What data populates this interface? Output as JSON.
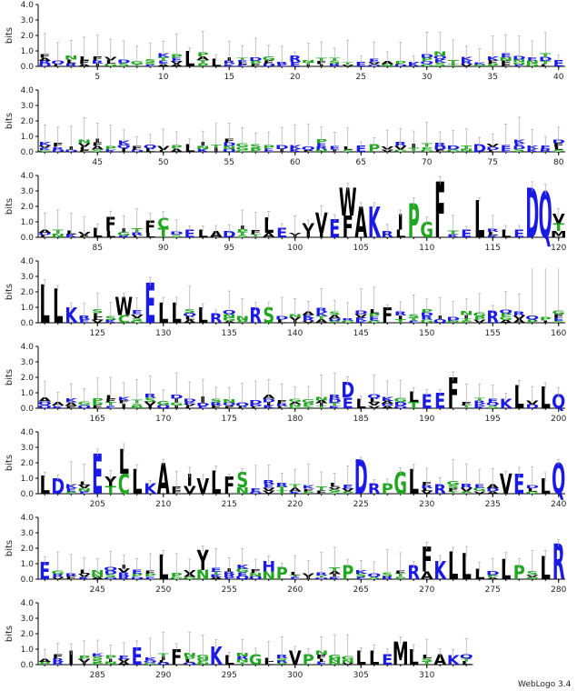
{
  "chart_data": {
    "type": "sequence-logo",
    "ylabel": "bits",
    "ylim": [
      0,
      4
    ],
    "y_ticks": [
      "0.0",
      "1.0",
      "2.0",
      "3.0",
      "4.0"
    ],
    "rows": [
      {
        "start": 1,
        "end": 40,
        "x_ticks": [
          5,
          10,
          15,
          20,
          25,
          30,
          35,
          40
        ]
      },
      {
        "start": 41,
        "end": 80,
        "x_ticks": [
          45,
          50,
          55,
          60,
          65,
          70,
          75,
          80
        ]
      },
      {
        "start": 81,
        "end": 120,
        "x_ticks": [
          85,
          90,
          95,
          100,
          105,
          110,
          115,
          120
        ]
      },
      {
        "start": 121,
        "end": 160,
        "x_ticks": [
          125,
          130,
          135,
          140,
          145,
          150,
          155,
          160
        ]
      },
      {
        "start": 161,
        "end": 200,
        "x_ticks": [
          165,
          170,
          175,
          180,
          185,
          190,
          195,
          200
        ]
      },
      {
        "start": 201,
        "end": 240,
        "x_ticks": [
          205,
          210,
          215,
          220,
          225,
          230,
          235,
          240
        ]
      },
      {
        "start": 241,
        "end": 280,
        "x_ticks": [
          245,
          250,
          255,
          260,
          265,
          270,
          275,
          280
        ]
      },
      {
        "start": 281,
        "end": 313,
        "x_ticks": [
          285,
          290,
          295,
          300,
          305,
          310
        ]
      }
    ],
    "colors": {
      "hydrophobic": "#000000",
      "polar": "#1fa81f",
      "charged": "#1a1ae6",
      "error": "#aaaaaa"
    },
    "residue_colors": {
      "A": "#000000",
      "V": "#000000",
      "L": "#000000",
      "I": "#000000",
      "P": "#1fa81f",
      "F": "#000000",
      "W": "#000000",
      "M": "#000000",
      "G": "#1fa81f",
      "S": "#1fa81f",
      "T": "#1fa81f",
      "C": "#1fa81f",
      "Y": "#000000",
      "N": "#1fa81f",
      "Q": "#1a1ae6",
      "D": "#1a1ae6",
      "E": "#1a1ae6",
      "K": "#1a1ae6",
      "R": "#1a1ae6",
      "H": "#1a1ae6"
    },
    "positions": [
      {
        "pos": 12,
        "stack": [
          [
            "L",
            1.0
          ]
        ]
      },
      {
        "pos": 14,
        "stack": [
          [
            "L",
            0.5
          ]
        ]
      },
      {
        "pos": 20,
        "stack": [
          [
            "R",
            0.4
          ],
          [
            "E",
            0.3
          ]
        ]
      },
      {
        "pos": 25,
        "stack": [
          [
            "E",
            0.3
          ]
        ]
      },
      {
        "pos": 29,
        "stack": [
          [
            "K",
            0.3
          ]
        ]
      },
      {
        "pos": 40,
        "stack": [
          [
            "E",
            0.4
          ]
        ]
      },
      {
        "pos": 52,
        "stack": [
          [
            "L",
            0.5
          ]
        ]
      },
      {
        "pos": 65,
        "stack": [
          [
            "E",
            0.4
          ]
        ]
      },
      {
        "pos": 66,
        "stack": [
          [
            "P",
            0.5
          ]
        ]
      },
      {
        "pos": 74,
        "stack": [
          [
            "D",
            0.5
          ]
        ]
      },
      {
        "pos": 85,
        "stack": [
          [
            "L",
            0.6
          ]
        ]
      },
      {
        "pos": 86,
        "stack": [
          [
            "F",
            0.9
          ],
          [
            "L",
            0.4
          ]
        ]
      },
      {
        "pos": 89,
        "stack": [
          [
            "F",
            0.8
          ],
          [
            "L",
            0.3
          ]
        ]
      },
      {
        "pos": 90,
        "stack": [
          [
            "C",
            0.7
          ],
          [
            "T",
            0.6
          ]
        ]
      },
      {
        "pos": 92,
        "stack": [
          [
            "E",
            0.5
          ]
        ]
      },
      {
        "pos": 93,
        "stack": [
          [
            "L",
            0.5
          ]
        ]
      },
      {
        "pos": 94,
        "stack": [
          [
            "A",
            0.4
          ]
        ]
      },
      {
        "pos": 95,
        "stack": [
          [
            "D",
            0.4
          ]
        ]
      },
      {
        "pos": 98,
        "stack": [
          [
            "L",
            1.0
          ],
          [
            "A",
            0.3
          ]
        ]
      },
      {
        "pos": 99,
        "stack": [
          [
            "E",
            0.6
          ]
        ]
      },
      {
        "pos": 101,
        "stack": [
          [
            "V",
            0.5
          ],
          [
            "I",
            0.4
          ]
        ]
      },
      {
        "pos": 102,
        "stack": [
          [
            "V",
            1.3
          ],
          [
            "I",
            0.3
          ]
        ]
      },
      {
        "pos": 103,
        "stack": [
          [
            "E",
            1.2
          ]
        ]
      },
      {
        "pos": 104,
        "stack": [
          [
            "W",
            1.8
          ],
          [
            "F",
            1.4
          ]
        ]
      },
      {
        "pos": 105,
        "stack": [
          [
            "A",
            2.0
          ]
        ]
      },
      {
        "pos": 106,
        "stack": [
          [
            "K",
            2.0
          ]
        ]
      },
      {
        "pos": 107,
        "stack": [
          [
            "R",
            0.4
          ]
        ]
      },
      {
        "pos": 108,
        "stack": [
          [
            "I",
            1.0
          ],
          [
            "L",
            0.5
          ]
        ]
      },
      {
        "pos": 109,
        "stack": [
          [
            "P",
            2.2
          ]
        ]
      },
      {
        "pos": 110,
        "stack": [
          [
            "G",
            1.0
          ]
        ]
      },
      {
        "pos": 111,
        "stack": [
          [
            "F",
            3.6
          ]
        ]
      },
      {
        "pos": 113,
        "stack": [
          [
            "E",
            0.5
          ]
        ]
      },
      {
        "pos": 114,
        "stack": [
          [
            "L",
            2.4
          ]
        ]
      },
      {
        "pos": 116,
        "stack": [
          [
            "L",
            0.5
          ]
        ]
      },
      {
        "pos": 117,
        "stack": [
          [
            "E",
            0.5
          ]
        ]
      },
      {
        "pos": 118,
        "stack": [
          [
            "D",
            3.2
          ]
        ]
      },
      {
        "pos": 119,
        "stack": [
          [
            "Q",
            3.0
          ]
        ]
      },
      {
        "pos": 120,
        "stack": [
          [
            "V",
            0.6
          ],
          [
            "T",
            0.5
          ],
          [
            "M",
            0.4
          ]
        ]
      },
      {
        "pos": 121,
        "stack": [
          [
            "L",
            2.5
          ]
        ]
      },
      {
        "pos": 122,
        "stack": [
          [
            "L",
            2.2
          ]
        ]
      },
      {
        "pos": 123,
        "stack": [
          [
            "K",
            1.0
          ]
        ]
      },
      {
        "pos": 127,
        "stack": [
          [
            "W",
            1.2
          ],
          [
            "C",
            0.5
          ]
        ]
      },
      {
        "pos": 129,
        "stack": [
          [
            "E",
            2.6
          ]
        ]
      },
      {
        "pos": 130,
        "stack": [
          [
            "L",
            1.3
          ]
        ]
      },
      {
        "pos": 131,
        "stack": [
          [
            "L",
            1.3
          ]
        ]
      },
      {
        "pos": 133,
        "stack": [
          [
            "L",
            1.0
          ]
        ]
      },
      {
        "pos": 134,
        "stack": [
          [
            "R",
            0.6
          ]
        ]
      },
      {
        "pos": 137,
        "stack": [
          [
            "R",
            1.0
          ]
        ]
      },
      {
        "pos": 138,
        "stack": [
          [
            "S",
            1.0
          ]
        ]
      },
      {
        "pos": 147,
        "stack": [
          [
            "F",
            1.0
          ]
        ]
      },
      {
        "pos": 155,
        "stack": [
          [
            "R",
            0.8
          ]
        ]
      },
      {
        "pos": 184,
        "stack": [
          [
            "D",
            1.0
          ],
          [
            "E",
            0.7
          ]
        ]
      },
      {
        "pos": 185,
        "stack": [
          [
            "L",
            0.6
          ]
        ]
      },
      {
        "pos": 189,
        "stack": [
          [
            "L",
            0.7
          ],
          [
            "T",
            0.4
          ]
        ]
      },
      {
        "pos": 190,
        "stack": [
          [
            "E",
            0.9
          ]
        ]
      },
      {
        "pos": 191,
        "stack": [
          [
            "E",
            1.0
          ]
        ]
      },
      {
        "pos": 192,
        "stack": [
          [
            "F",
            2.0
          ]
        ]
      },
      {
        "pos": 196,
        "stack": [
          [
            "K",
            0.6
          ]
        ]
      },
      {
        "pos": 197,
        "stack": [
          [
            "L",
            1.5
          ]
        ]
      },
      {
        "pos": 199,
        "stack": [
          [
            "L",
            1.4
          ]
        ]
      },
      {
        "pos": 200,
        "stack": [
          [
            "Q",
            0.9
          ]
        ]
      },
      {
        "pos": 201,
        "stack": [
          [
            "L",
            1.2
          ]
        ]
      },
      {
        "pos": 202,
        "stack": [
          [
            "D",
            1.0
          ]
        ]
      },
      {
        "pos": 205,
        "stack": [
          [
            "E",
            2.6
          ]
        ]
      },
      {
        "pos": 206,
        "stack": [
          [
            "Y",
            0.6
          ],
          [
            "T",
            0.5
          ]
        ]
      },
      {
        "pos": 207,
        "stack": [
          [
            "L",
            1.6
          ],
          [
            "C",
            1.3
          ]
        ]
      },
      {
        "pos": 208,
        "stack": [
          [
            "L",
            1.6
          ]
        ]
      },
      {
        "pos": 209,
        "stack": [
          [
            "K",
            0.7
          ]
        ]
      },
      {
        "pos": 210,
        "stack": [
          [
            "A",
            2.0
          ]
        ]
      },
      {
        "pos": 212,
        "stack": [
          [
            "I",
            0.8
          ],
          [
            "V",
            0.5
          ]
        ]
      },
      {
        "pos": 213,
        "stack": [
          [
            "V",
            1.0
          ]
        ]
      },
      {
        "pos": 214,
        "stack": [
          [
            "L",
            1.5
          ]
        ]
      },
      {
        "pos": 215,
        "stack": [
          [
            "F",
            1.1
          ]
        ]
      },
      {
        "pos": 216,
        "stack": [
          [
            "S",
            1.0
          ],
          [
            "N",
            0.4
          ]
        ]
      },
      {
        "pos": 225,
        "stack": [
          [
            "D",
            2.2
          ]
        ]
      },
      {
        "pos": 226,
        "stack": [
          [
            "R",
            0.7
          ]
        ]
      },
      {
        "pos": 227,
        "stack": [
          [
            "P",
            0.7
          ]
        ]
      },
      {
        "pos": 228,
        "stack": [
          [
            "G",
            1.4
          ]
        ]
      },
      {
        "pos": 229,
        "stack": [
          [
            "L",
            1.6
          ]
        ]
      },
      {
        "pos": 231,
        "stack": [
          [
            "R",
            0.6
          ]
        ]
      },
      {
        "pos": 236,
        "stack": [
          [
            "V",
            1.3
          ]
        ]
      },
      {
        "pos": 237,
        "stack": [
          [
            "E",
            1.3
          ]
        ]
      },
      {
        "pos": 239,
        "stack": [
          [
            "L",
            1.0
          ]
        ]
      },
      {
        "pos": 240,
        "stack": [
          [
            "Q",
            2.0
          ]
        ]
      },
      {
        "pos": 241,
        "stack": [
          [
            "E",
            1.1
          ]
        ]
      },
      {
        "pos": 250,
        "stack": [
          [
            "L",
            1.6
          ]
        ]
      },
      {
        "pos": 253,
        "stack": [
          [
            "Y",
            1.3
          ],
          [
            "N",
            0.6
          ]
        ]
      },
      {
        "pos": 258,
        "stack": [
          [
            "H",
            0.7
          ],
          [
            "N",
            0.5
          ]
        ]
      },
      {
        "pos": 259,
        "stack": [
          [
            "P",
            0.8
          ]
        ]
      },
      {
        "pos": 264,
        "stack": [
          [
            "P",
            0.9
          ]
        ]
      },
      {
        "pos": 269,
        "stack": [
          [
            "R",
            0.9
          ]
        ]
      },
      {
        "pos": 270,
        "stack": [
          [
            "F",
            1.6
          ],
          [
            "A",
            0.5
          ]
        ]
      },
      {
        "pos": 271,
        "stack": [
          [
            "K",
            1.2
          ]
        ]
      },
      {
        "pos": 272,
        "stack": [
          [
            "L",
            1.8
          ]
        ]
      },
      {
        "pos": 273,
        "stack": [
          [
            "L",
            1.7
          ]
        ]
      },
      {
        "pos": 274,
        "stack": [
          [
            "L",
            0.7
          ]
        ]
      },
      {
        "pos": 276,
        "stack": [
          [
            "L",
            1.3
          ]
        ]
      },
      {
        "pos": 277,
        "stack": [
          [
            "P",
            0.9
          ]
        ]
      },
      {
        "pos": 279,
        "stack": [
          [
            "L",
            1.5
          ]
        ]
      },
      {
        "pos": 280,
        "stack": [
          [
            "R",
            2.3
          ]
        ]
      },
      {
        "pos": 283,
        "stack": [
          [
            "I",
            0.9
          ]
        ]
      },
      {
        "pos": 288,
        "stack": [
          [
            "E",
            1.1
          ]
        ]
      },
      {
        "pos": 291,
        "stack": [
          [
            "F",
            1.0
          ]
        ]
      },
      {
        "pos": 294,
        "stack": [
          [
            "K",
            1.2
          ]
        ]
      },
      {
        "pos": 295,
        "stack": [
          [
            "L",
            0.6
          ]
        ]
      },
      {
        "pos": 297,
        "stack": [
          [
            "G",
            0.7
          ]
        ]
      },
      {
        "pos": 300,
        "stack": [
          [
            "V",
            0.9
          ]
        ]
      },
      {
        "pos": 301,
        "stack": [
          [
            "P",
            0.7
          ]
        ]
      },
      {
        "pos": 305,
        "stack": [
          [
            "L",
            0.9
          ]
        ]
      },
      {
        "pos": 306,
        "stack": [
          [
            "L",
            0.9
          ]
        ]
      },
      {
        "pos": 307,
        "stack": [
          [
            "E",
            0.7
          ]
        ]
      },
      {
        "pos": 308,
        "stack": [
          [
            "M",
            1.5
          ]
        ]
      },
      {
        "pos": 309,
        "stack": [
          [
            "L",
            1.0
          ]
        ]
      },
      {
        "pos": 311,
        "stack": [
          [
            "A",
            0.7
          ]
        ]
      },
      {
        "pos": 312,
        "stack": [
          [
            "K",
            0.6
          ]
        ]
      }
    ],
    "background_letters": [
      "E",
      "S",
      "A",
      "G",
      "D",
      "K",
      "L",
      "T",
      "R",
      "N",
      "V",
      "P",
      "Q",
      "I",
      "F"
    ]
  },
  "footer": {
    "version_label": "WebLogo 3.4"
  }
}
